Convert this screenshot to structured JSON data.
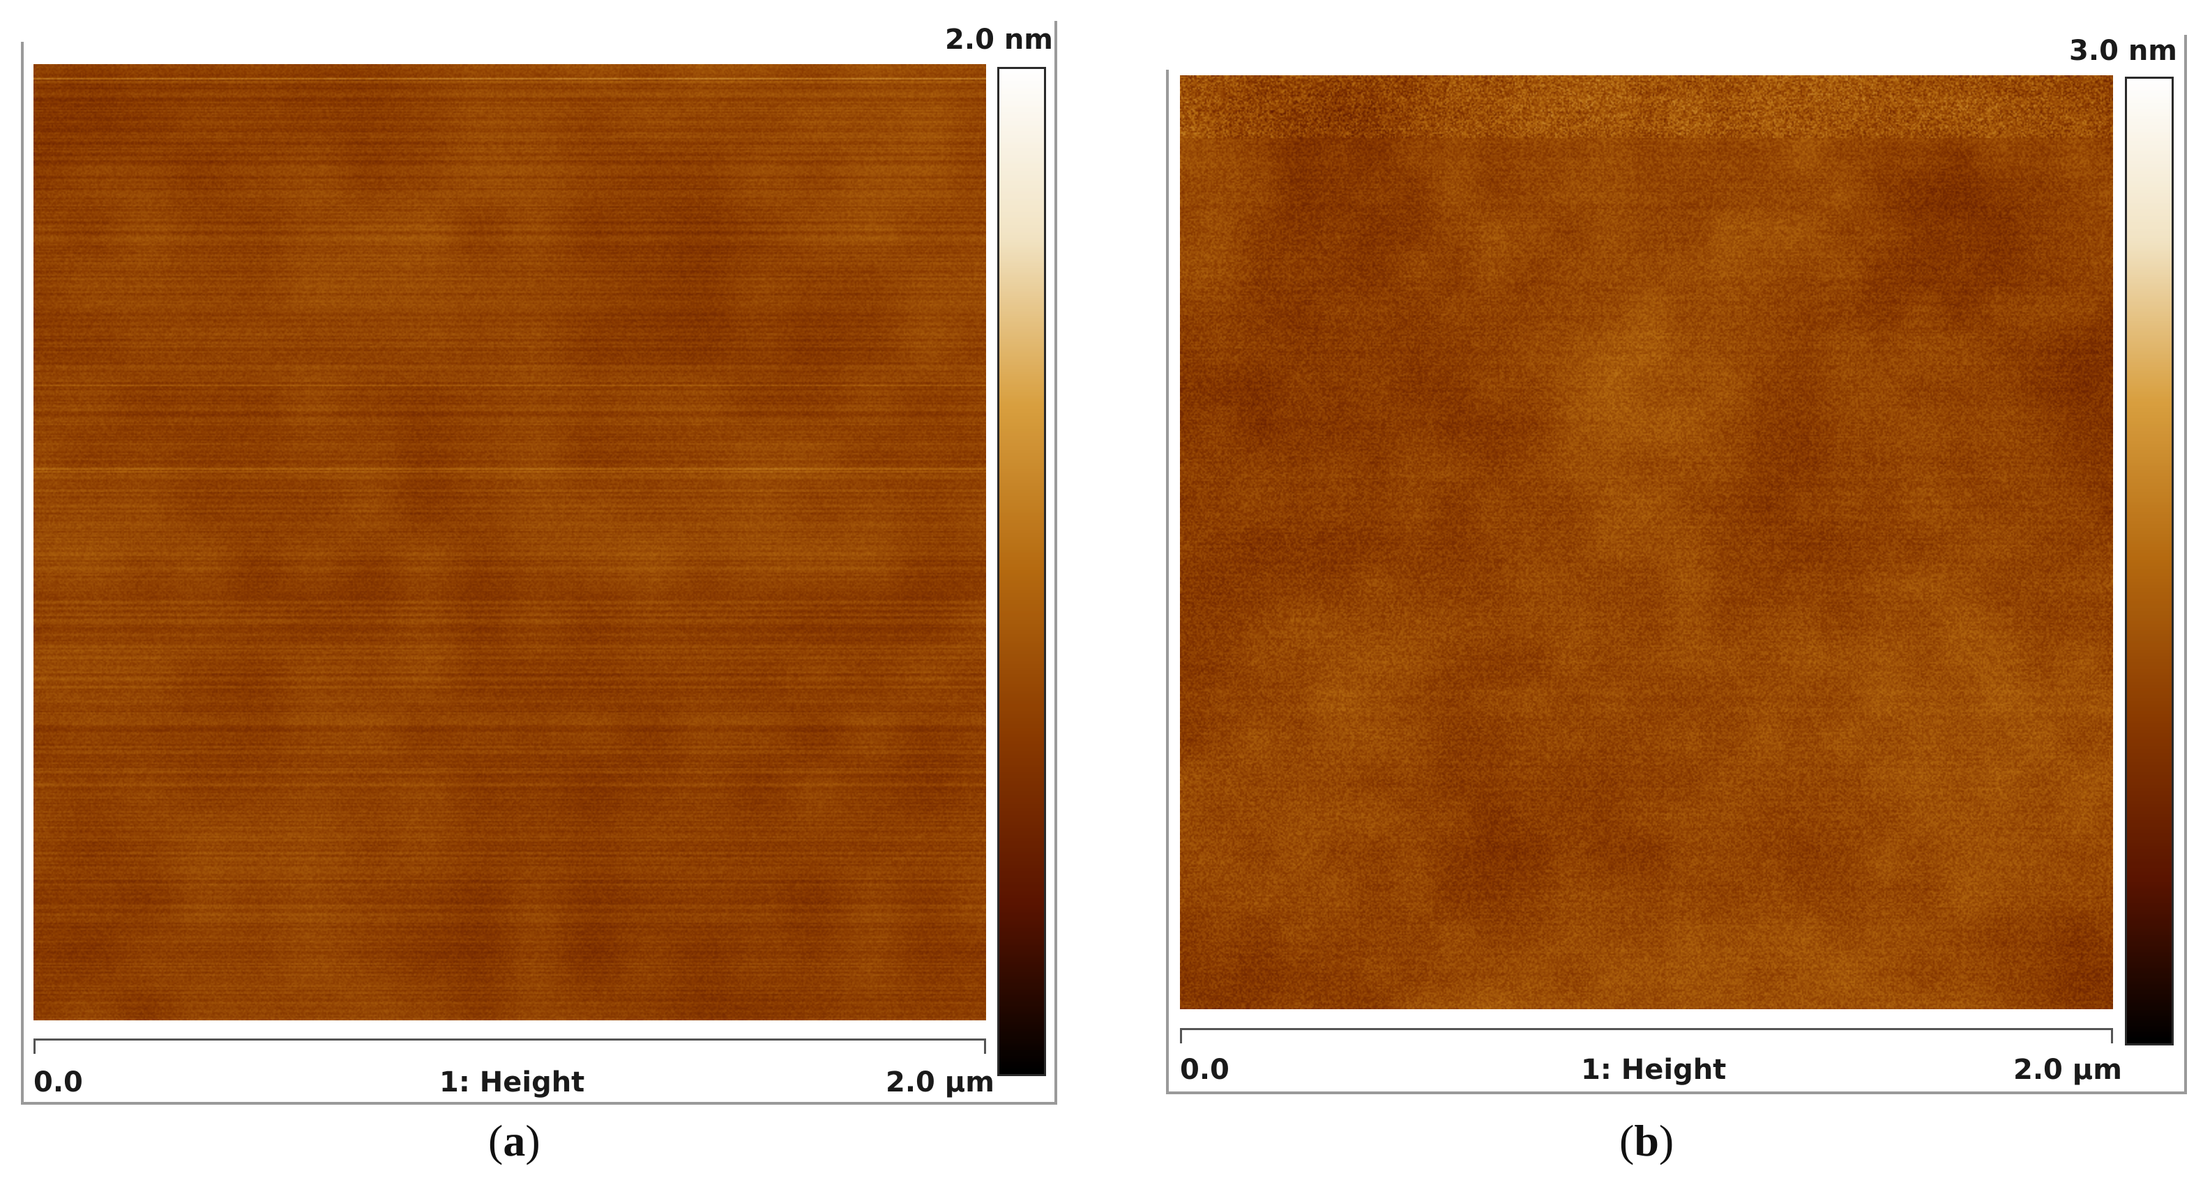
{
  "panels": [
    {
      "id": "a",
      "colorbar_max": "2.0 nm",
      "axis_left": "0.0",
      "axis_center": "1: Height",
      "axis_right": "2.0 µm",
      "caption_open": "(",
      "caption_letter": "a",
      "caption_close": ")",
      "texture": "striped-fine"
    },
    {
      "id": "b",
      "colorbar_max": "3.0 nm",
      "axis_left": "0.0",
      "axis_center": "1: Height",
      "axis_right": "2.0 µm",
      "caption_open": "(",
      "caption_letter": "b",
      "caption_close": ")",
      "texture": "mottled"
    }
  ],
  "colors": {
    "colormap": [
      "#000000",
      "#5a1400",
      "#8a3a00",
      "#b56a10",
      "#d9a040",
      "#f2e4c4",
      "#ffffff"
    ],
    "frame": "#9a9a9a"
  }
}
